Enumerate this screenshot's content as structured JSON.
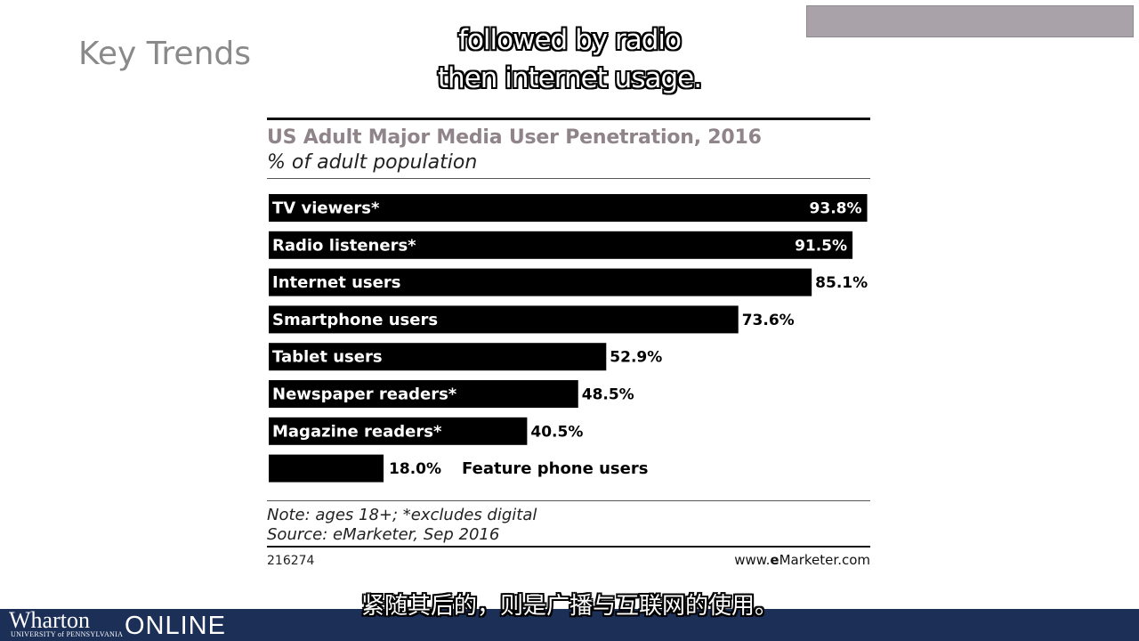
{
  "slide": {
    "title": "Key Trends"
  },
  "captions": {
    "en_line1": "followed by radio",
    "en_line2": "then internet usage.",
    "zh": "紧随其后的，则是广播与互联网的使用。"
  },
  "chart_data": {
    "type": "bar",
    "orientation": "horizontal",
    "title": "US Adult Major Media User Penetration, 2016",
    "subtitle": "% of adult population",
    "categories": [
      "TV viewers*",
      "Radio listeners*",
      "Internet users",
      "Smartphone users",
      "Tablet users",
      "Newspaper readers*",
      "Magazine readers*",
      "Feature phone users"
    ],
    "values": [
      93.8,
      91.5,
      85.1,
      73.6,
      52.9,
      48.5,
      40.5,
      18.0
    ],
    "value_labels": [
      "93.8%",
      "91.5%",
      "85.1%",
      "73.6%",
      "52.9%",
      "48.5%",
      "40.5%",
      "18.0%"
    ],
    "xlim": [
      0,
      100
    ],
    "bar_color": "#000000",
    "label_color": "#ffffff",
    "note": "Note: ages 18+; *excludes digital",
    "source": "Source: eMarketer, Sep 2016",
    "chart_id": "216274",
    "url_prefix": "www.",
    "url_brand_initial": "e",
    "url_brand_rest": "Marketer",
    "url_suffix": ".com"
  },
  "footer": {
    "logo_name": "Wharton",
    "logo_university": "UNIVERSITY of PENNSYLVANIA",
    "logo_online": "ONLINE",
    "brand_color": "#1c2f57"
  }
}
